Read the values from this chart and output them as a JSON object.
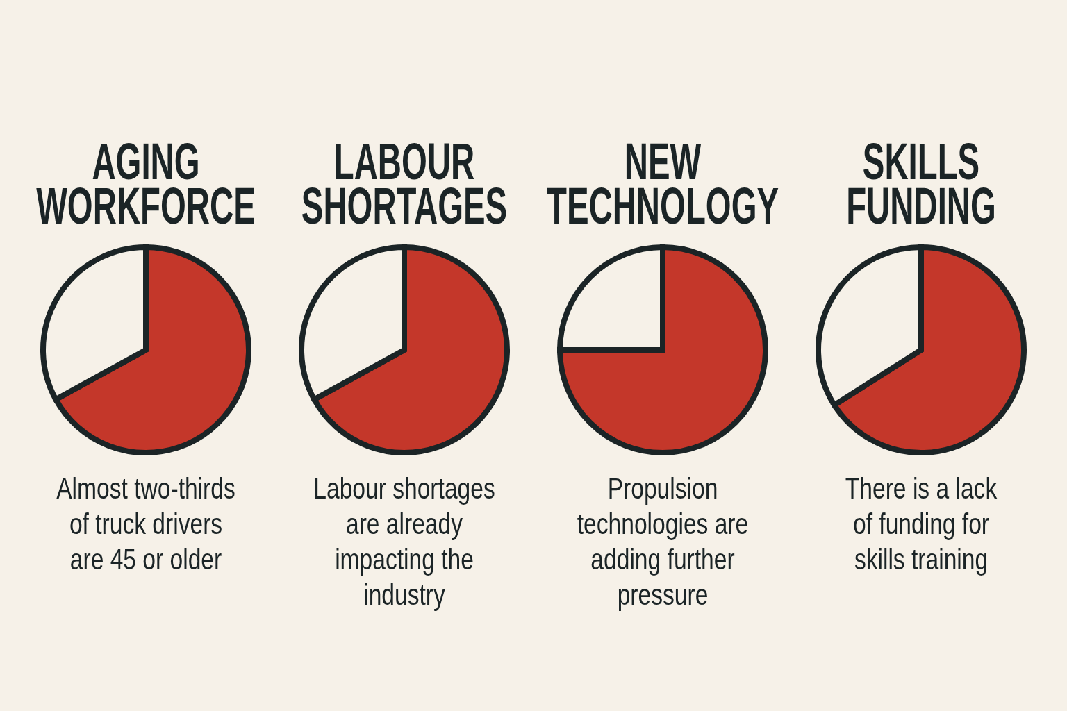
{
  "chart_data": [
    {
      "type": "pie",
      "title": "AGING\nWORKFORCE",
      "categories": [
        null,
        null
      ],
      "values": [
        67,
        33
      ],
      "colors": [
        "#c4372a",
        "#f6f1e8"
      ],
      "annotations": [
        "Almost two-thirds\nof truck drivers\nare 45 or older"
      ]
    },
    {
      "type": "pie",
      "title": "LABOUR\nSHORTAGES",
      "categories": [
        null,
        null
      ],
      "values": [
        67,
        33
      ],
      "colors": [
        "#c4372a",
        "#f6f1e8"
      ],
      "annotations": [
        "Labour shortages\nare already\nimpacting the\nindustry"
      ]
    },
    {
      "type": "pie",
      "title": "NEW\nTECHNOLOGY",
      "categories": [
        null,
        null
      ],
      "values": [
        75,
        25
      ],
      "colors": [
        "#c4372a",
        "#f6f1e8"
      ],
      "annotations": [
        "Propulsion\ntechnologies are\nadding further\npressure"
      ]
    },
    {
      "type": "pie",
      "title": "SKILLS\nFUNDING",
      "categories": [
        null,
        null
      ],
      "values": [
        66,
        34
      ],
      "colors": [
        "#c4372a",
        "#f6f1e8"
      ],
      "annotations": [
        "There is a lack\nof funding for\nskills training"
      ]
    }
  ]
}
